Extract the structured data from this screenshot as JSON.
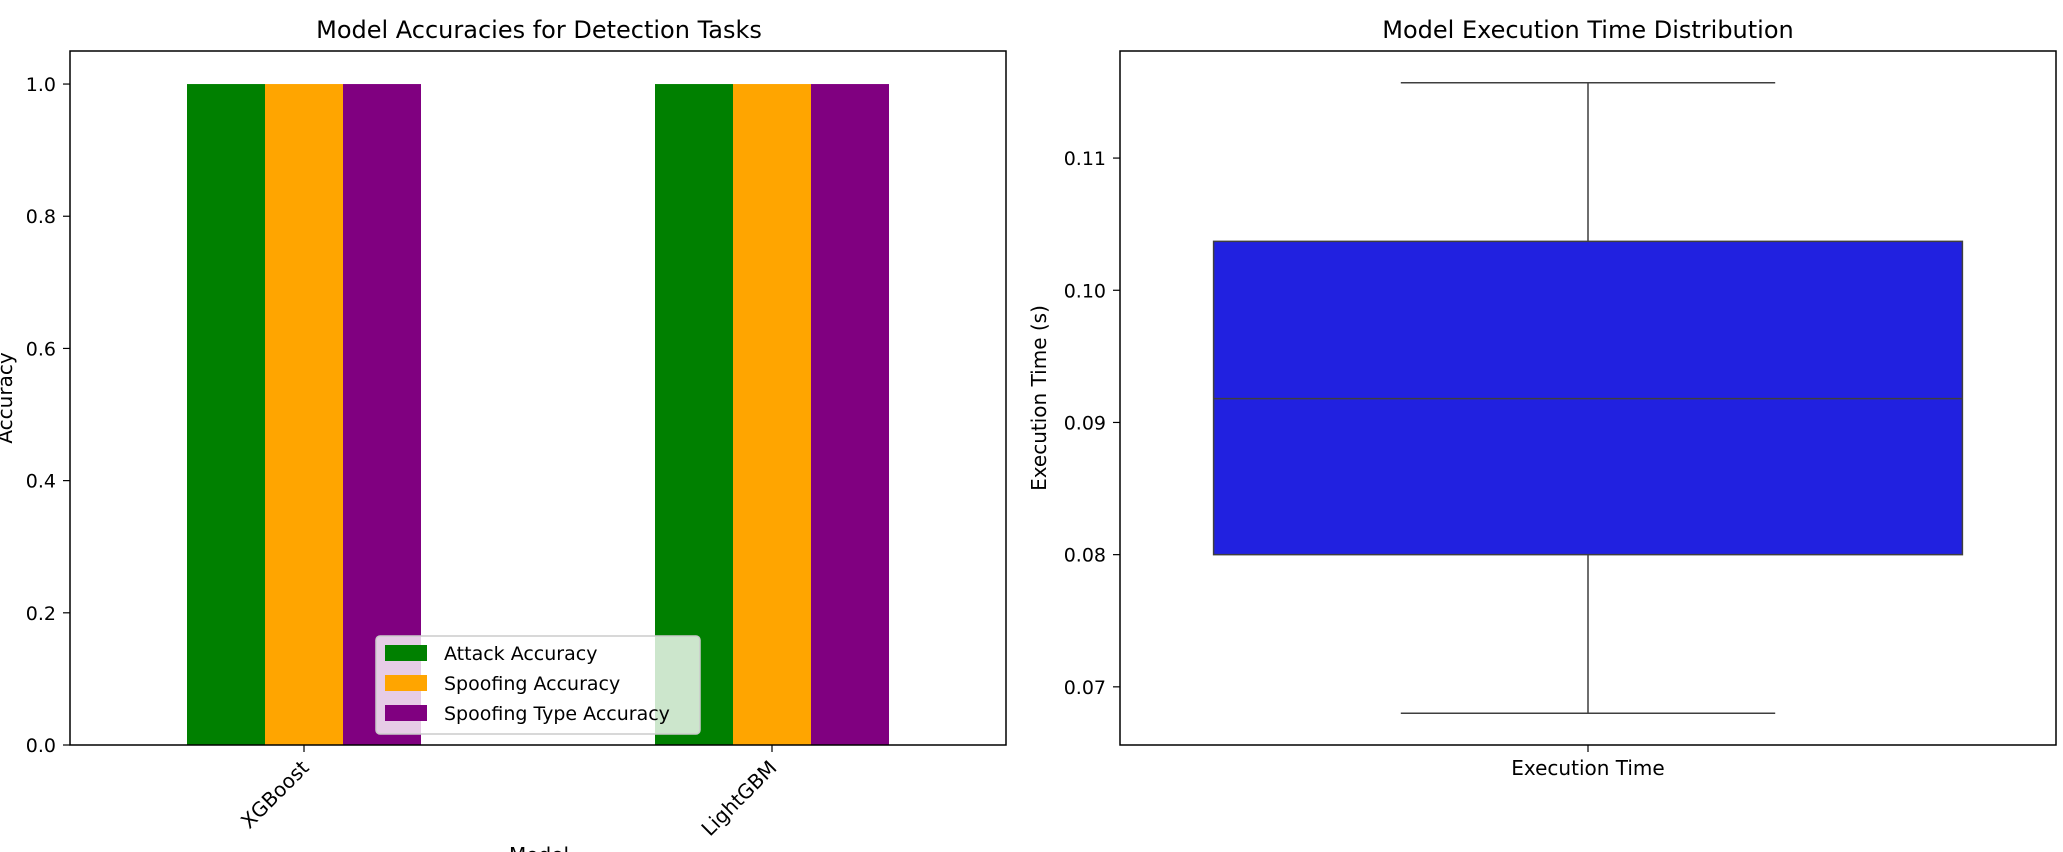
{
  "chart_data": [
    {
      "type": "bar",
      "title": "Model Accuracies for Detection Tasks",
      "xlabel": "Model",
      "ylabel": "Accuracy",
      "categories": [
        "XGBoost",
        "LightGBM"
      ],
      "series": [
        {
          "name": "Attack Accuracy",
          "color": "#008000",
          "values": [
            1.0,
            1.0
          ]
        },
        {
          "name": "Spoofing Accuracy",
          "color": "#ffa500",
          "values": [
            1.0,
            1.0
          ]
        },
        {
          "name": "Spoofing Type Accuracy",
          "color": "#800080",
          "values": [
            1.0,
            1.0
          ]
        }
      ],
      "ylim": [
        0,
        1.05
      ],
      "yticks": [
        "0.0",
        "0.2",
        "0.4",
        "0.6",
        "0.8",
        "1.0"
      ],
      "legend": "lower center",
      "grid": false
    },
    {
      "type": "box",
      "title": "Model Execution Time Distribution",
      "xlabel": "Execution Time",
      "ylabel": "Execution Time (s)",
      "categories": [
        "Execution Time"
      ],
      "box": {
        "whisker_low": 0.068,
        "q1": 0.08,
        "median": 0.0918,
        "q3": 0.1037,
        "whisker_high": 0.1157,
        "color": "#2121e0"
      },
      "ylim": [
        0.0656,
        0.1181
      ],
      "yticks": [
        "0.07",
        "0.08",
        "0.09",
        "0.10",
        "0.11"
      ],
      "grid": false
    }
  ]
}
